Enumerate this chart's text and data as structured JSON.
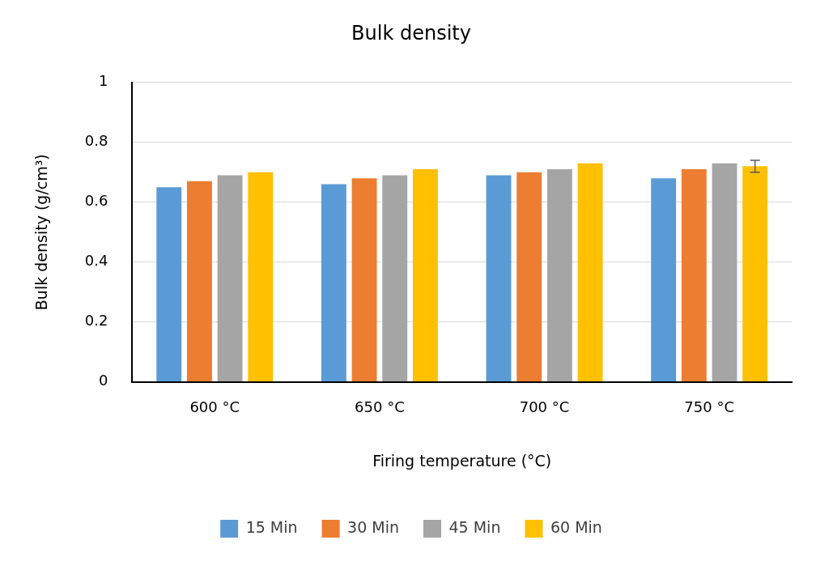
{
  "chart_data": {
    "type": "bar",
    "title": "Bulk density",
    "xlabel": "Firing temperature (°C)",
    "ylabel": "Bulk density (g/cm³)",
    "categories": [
      "600 °C",
      "650 °C",
      "700 °C",
      "750 °C"
    ],
    "series": [
      {
        "name": "15 Min",
        "color": "#5b9bd5",
        "values": [
          0.65,
          0.66,
          0.69,
          0.68
        ]
      },
      {
        "name": "30 Min",
        "color": "#ed7d31",
        "values": [
          0.67,
          0.68,
          0.7,
          0.71
        ]
      },
      {
        "name": "45 Min",
        "color": "#a5a5a5",
        "values": [
          0.69,
          0.69,
          0.71,
          0.73
        ]
      },
      {
        "name": "60 Min",
        "color": "#ffc000",
        "values": [
          0.7,
          0.71,
          0.73,
          0.72
        ],
        "errors": [
          null,
          null,
          null,
          0.02
        ]
      }
    ],
    "ylim": [
      0,
      1
    ],
    "yticks": [
      0,
      0.2,
      0.4,
      0.6,
      0.8,
      1
    ],
    "grid": "y",
    "legend": "bottom"
  }
}
